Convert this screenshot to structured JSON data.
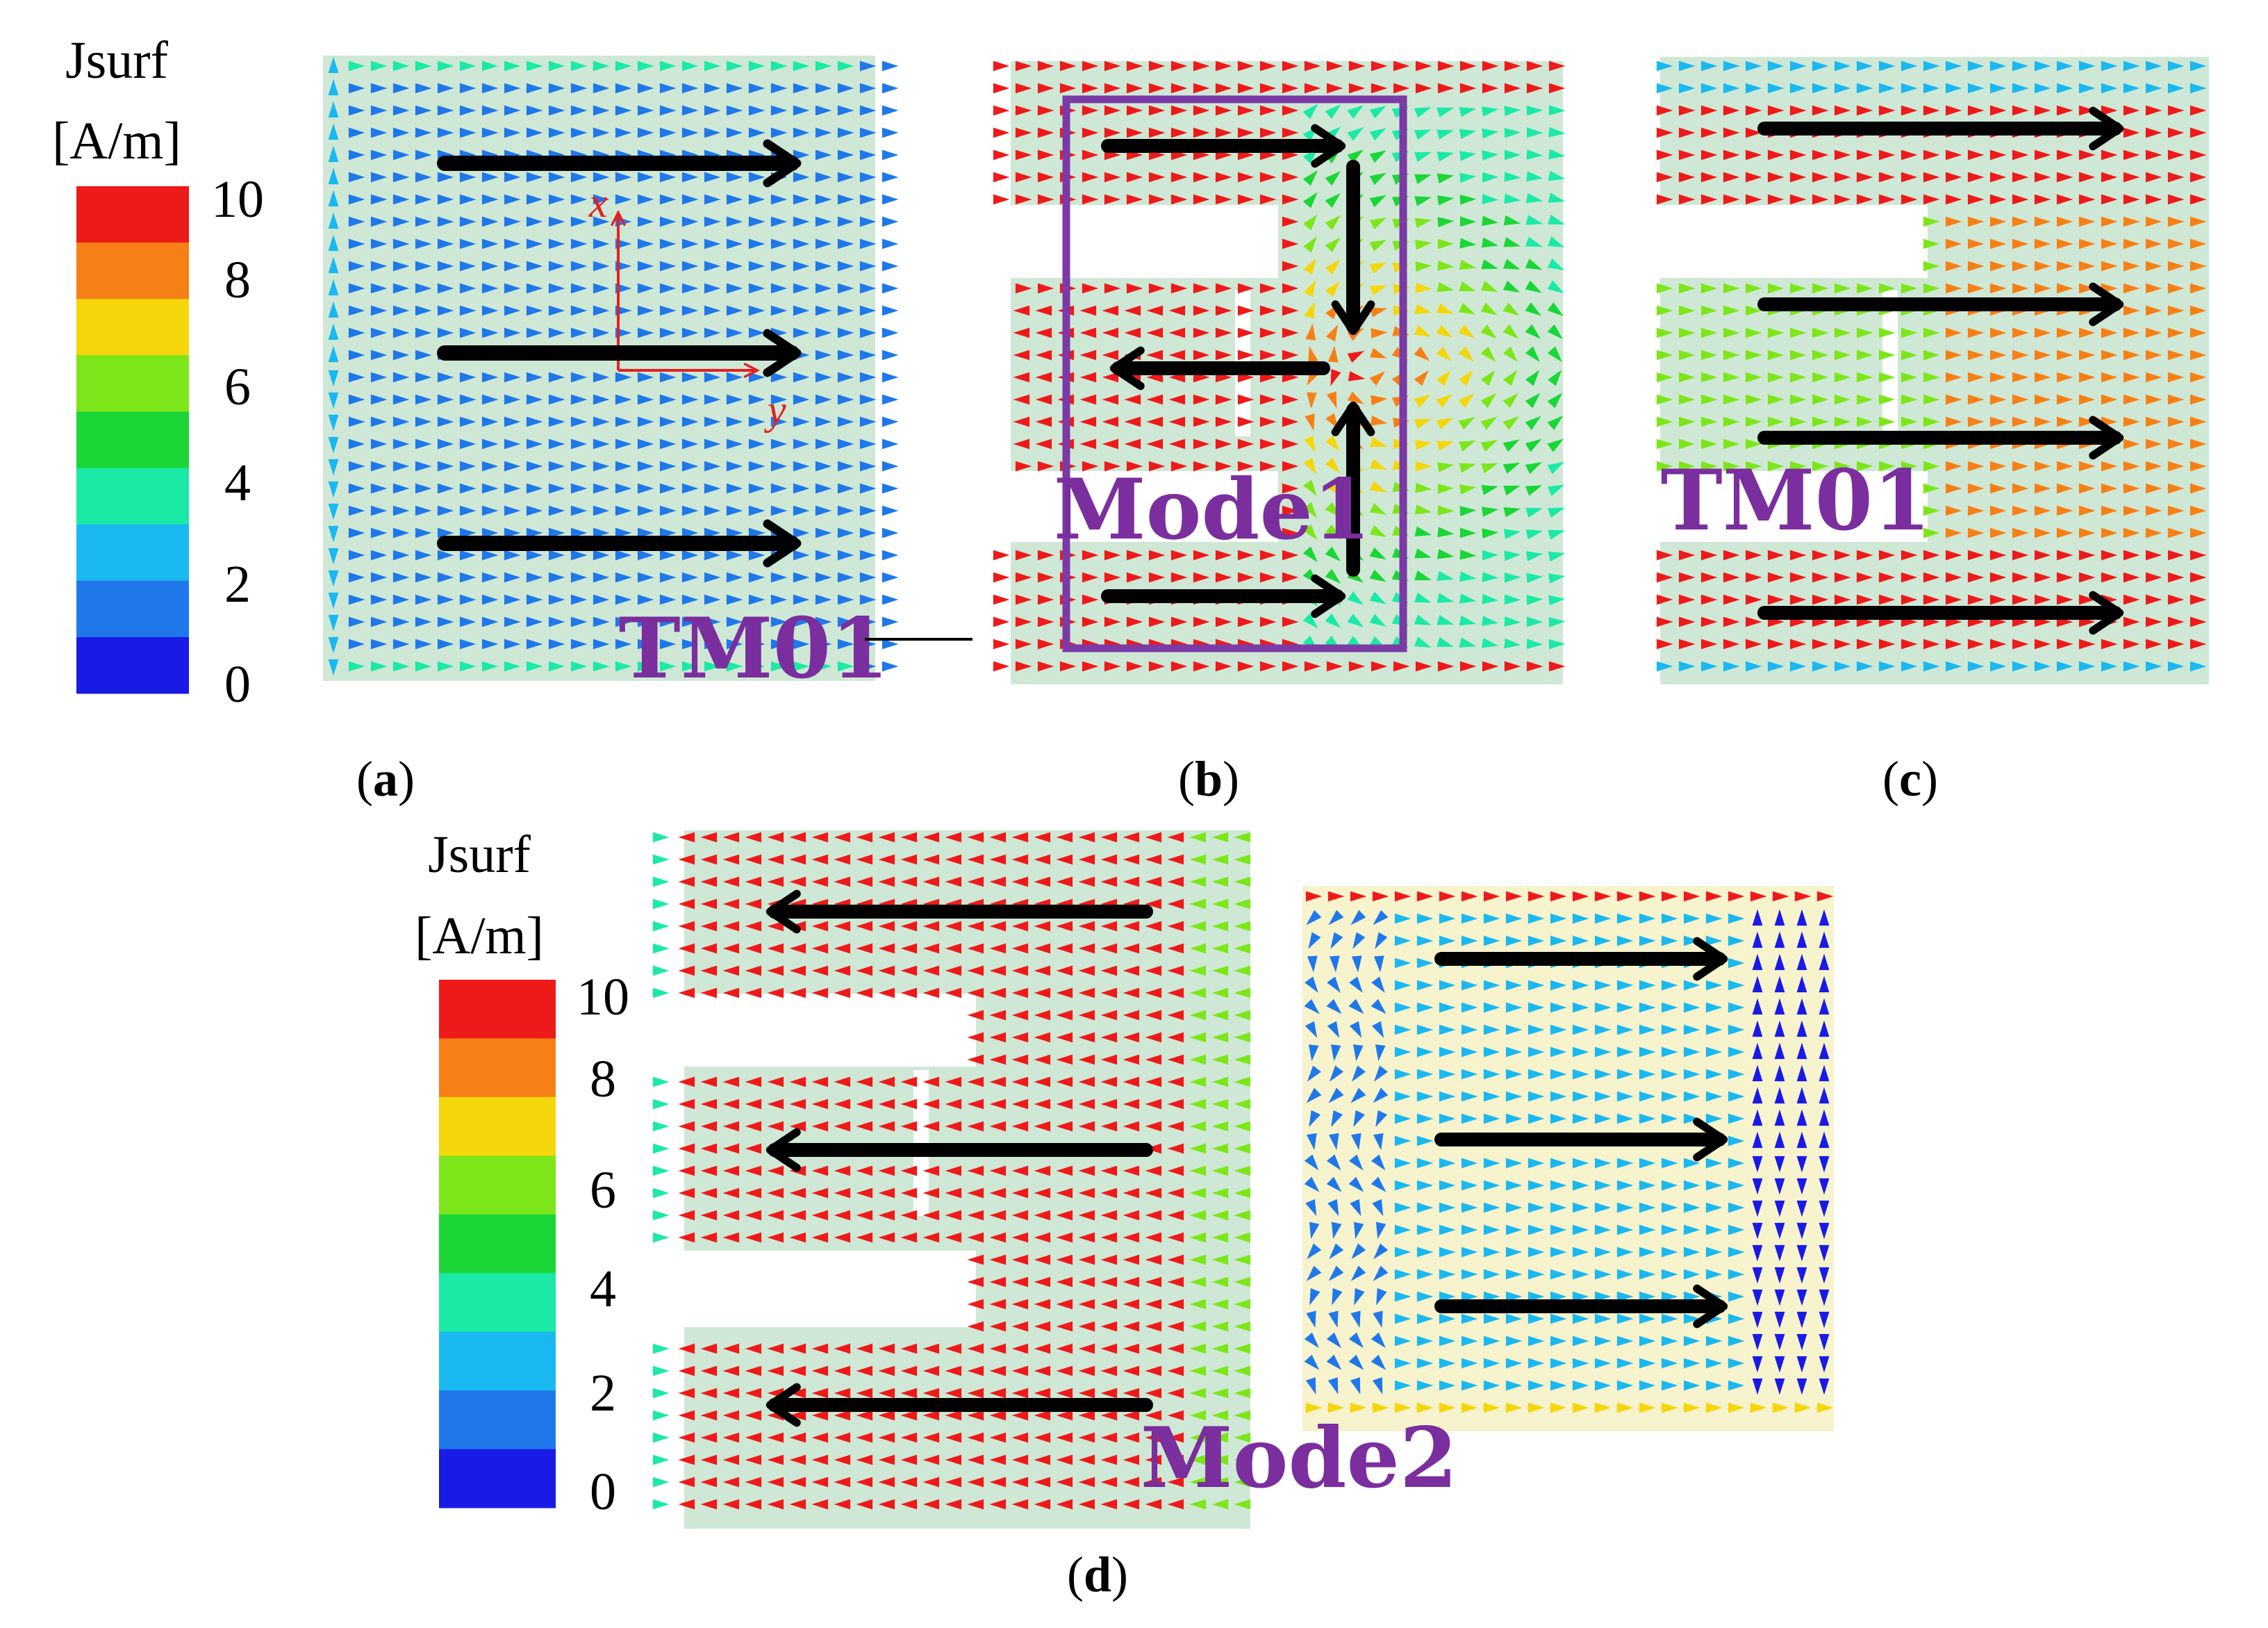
{
  "colors": {
    "scale": [
      "#1a1ae6",
      "#1f78ea",
      "#1ab8f0",
      "#1aeaa5",
      "#1ad636",
      "#7de61a",
      "#f5d60a",
      "#f78016",
      "#ee1a1a"
    ],
    "substrate": "#cfe8d6",
    "substrate_d2": "#f7f3cc",
    "mode_label": "#7b2e9e",
    "box": "#7b3aa6",
    "axes": "#e42020",
    "arrow": "#000000"
  },
  "legend_top": {
    "title_line1": "Jsurf",
    "title_line2": "[A/m]",
    "ticks": [
      "10",
      "8",
      "6",
      "4",
      "2",
      "0"
    ]
  },
  "legend_bottom": {
    "title_line1": "Jsurf",
    "title_line2": "[A/m]",
    "ticks": [
      "10",
      "8",
      "6",
      "4",
      "2",
      "0"
    ]
  },
  "panels": {
    "a": {
      "caption_letter": "a",
      "mode_label": "TM01",
      "axis_x": "x",
      "axis_y": "y"
    },
    "b": {
      "caption_letter": "b",
      "mode_label": "Mode1"
    },
    "c": {
      "caption_letter": "c",
      "mode_label": "TM01"
    },
    "d": {
      "caption_letter": "d",
      "mode_label": "Mode2"
    }
  }
}
